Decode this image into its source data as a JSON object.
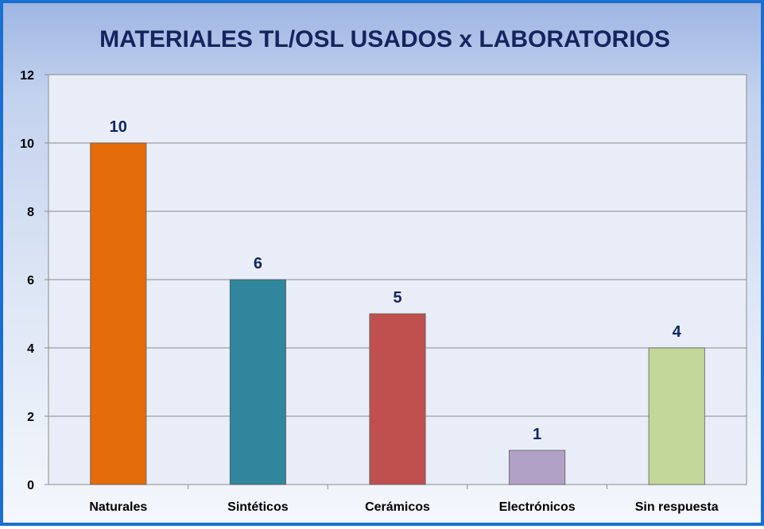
{
  "chart_data": {
    "type": "bar",
    "title": "MATERIALES TL/OSL USADOS x LABORATORIOS",
    "xlabel": "",
    "ylabel": "",
    "categories": [
      "Naturales",
      "Sintéticos",
      "Cerámicos",
      "Electrónicos",
      "Sin respuesta"
    ],
    "values": [
      10,
      6,
      5,
      1,
      4
    ],
    "data_labels": [
      "10",
      "6",
      "5",
      "1",
      "4"
    ],
    "bar_colors": [
      "#e46c0a",
      "#31859c",
      "#c0504d",
      "#b2a1c7",
      "#c4d79b"
    ],
    "ylim": [
      0,
      12
    ],
    "yticks": [
      0,
      2,
      4,
      6,
      8,
      10,
      12
    ],
    "grid": true,
    "legend": "none",
    "plot_background": "#e9edf7",
    "gridline_color": "#8c8c8c",
    "title_color": "#13255e",
    "label_color": "#13255e"
  }
}
